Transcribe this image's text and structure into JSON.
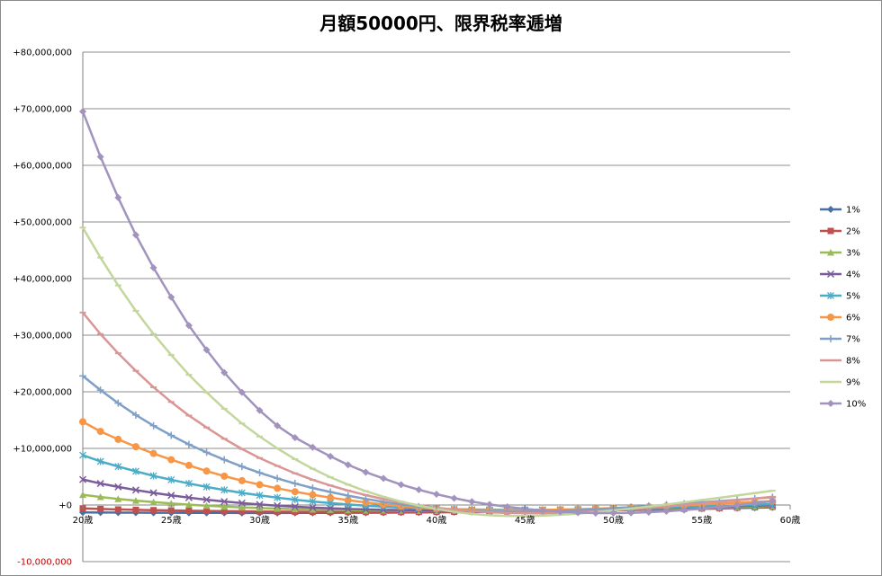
{
  "chart_data": {
    "type": "line",
    "title": "月額50000円、限界税率逓増",
    "xlabel": "",
    "ylabel": "",
    "xlim": [
      20,
      60
    ],
    "ylim": [
      -10000000,
      80000000
    ],
    "x_ticks": [
      {
        "value": 20,
        "label": "20歳"
      },
      {
        "value": 25,
        "label": "25歳"
      },
      {
        "value": 30,
        "label": "30歳"
      },
      {
        "value": 35,
        "label": "35歳"
      },
      {
        "value": 40,
        "label": "40歳"
      },
      {
        "value": 45,
        "label": "45歳"
      },
      {
        "value": 50,
        "label": "50歳"
      },
      {
        "value": 55,
        "label": "55歳"
      },
      {
        "value": 60,
        "label": "60歳"
      }
    ],
    "y_ticks": [
      {
        "value": 80000000,
        "label": "+80,000,000"
      },
      {
        "value": 70000000,
        "label": "+70,000,000"
      },
      {
        "value": 60000000,
        "label": "+60,000,000"
      },
      {
        "value": 50000000,
        "label": "+50,000,000"
      },
      {
        "value": 40000000,
        "label": "+40,000,000"
      },
      {
        "value": 30000000,
        "label": "+30,000,000"
      },
      {
        "value": 20000000,
        "label": "+20,000,000"
      },
      {
        "value": 10000000,
        "label": "+10,000,000"
      },
      {
        "value": 0,
        "label": "+0"
      },
      {
        "value": -10000000,
        "label": "-10,000,000"
      }
    ],
    "grid": true,
    "legend_position": "right",
    "x": [
      20,
      21,
      22,
      23,
      24,
      25,
      26,
      27,
      28,
      29,
      30,
      31,
      32,
      33,
      34,
      35,
      36,
      37,
      38,
      39,
      40,
      41,
      42,
      43,
      44,
      45,
      46,
      47,
      48,
      49,
      50,
      51,
      52,
      53,
      54,
      55,
      56,
      57,
      58,
      59
    ],
    "series": [
      {
        "name": "1%",
        "color": "#4a6fa5",
        "marker": "diamond",
        "values": [
          -1300000,
          -1320000,
          -1340000,
          -1350000,
          -1360000,
          -1370000,
          -1380000,
          -1390000,
          -1395000,
          -1400000,
          -1400000,
          -1400000,
          -1395000,
          -1390000,
          -1380000,
          -1370000,
          -1360000,
          -1345000,
          -1330000,
          -1310000,
          -1290000,
          -1265000,
          -1240000,
          -1210000,
          -1180000,
          -1145000,
          -1110000,
          -1070000,
          -1030000,
          -985000,
          -940000,
          -890000,
          -840000,
          -785000,
          -730000,
          -670000,
          -610000,
          -545000,
          -480000,
          -410000
        ]
      },
      {
        "name": "2%",
        "color": "#c0504d",
        "marker": "square",
        "values": [
          -600000,
          -700000,
          -780000,
          -850000,
          -910000,
          -960000,
          -1010000,
          -1050000,
          -1090000,
          -1120000,
          -1150000,
          -1175000,
          -1195000,
          -1210000,
          -1220000,
          -1230000,
          -1235000,
          -1235000,
          -1230000,
          -1222000,
          -1210000,
          -1195000,
          -1175000,
          -1152000,
          -1125000,
          -1095000,
          -1062000,
          -1025000,
          -985000,
          -942000,
          -895000,
          -845000,
          -792000,
          -735000,
          -675000,
          -612000,
          -545000,
          -476000,
          -403000,
          -327000
        ]
      },
      {
        "name": "3%",
        "color": "#9bbb59",
        "marker": "triangle",
        "values": [
          1800000,
          1420000,
          1080000,
          780000,
          510000,
          270000,
          60000,
          -120000,
          -280000,
          -420000,
          -540000,
          -640000,
          -730000,
          -800000,
          -860000,
          -910000,
          -950000,
          -980000,
          -1000000,
          -1012000,
          -1018000,
          -1018000,
          -1012000,
          -1000000,
          -983000,
          -960000,
          -932000,
          -900000,
          -862000,
          -820000,
          -773000,
          -722000,
          -667000,
          -608000,
          -545000,
          -478000,
          -408000,
          -334000,
          -257000,
          -176000
        ]
      },
      {
        "name": "4%",
        "color": "#7a5c9a",
        "marker": "x",
        "values": [
          4500000,
          3800000,
          3200000,
          2650000,
          2150000,
          1700000,
          1300000,
          940000,
          620000,
          340000,
          90000,
          -120000,
          -300000,
          -450000,
          -580000,
          -690000,
          -780000,
          -850000,
          -900000,
          -940000,
          -968000,
          -982000,
          -985000,
          -978000,
          -962000,
          -938000,
          -906000,
          -868000,
          -824000,
          -774000,
          -719000,
          -659000,
          -594000,
          -525000,
          -452000,
          -375000,
          -294000,
          -210000,
          -122000,
          -31000
        ]
      },
      {
        "name": "5%",
        "color": "#4aacc6",
        "marker": "star",
        "values": [
          8800000,
          7700000,
          6800000,
          5950000,
          5150000,
          4450000,
          3800000,
          3200000,
          2650000,
          2150000,
          1700000,
          1300000,
          940000,
          620000,
          340000,
          90000,
          -120000,
          -300000,
          -450000,
          -570000,
          -670000,
          -745000,
          -800000,
          -836000,
          -854000,
          -856000,
          -844000,
          -818000,
          -780000,
          -731000,
          -672000,
          -604000,
          -528000,
          -445000,
          -355000,
          -260000,
          -160000,
          -56000,
          52000,
          163000
        ]
      },
      {
        "name": "6%",
        "color": "#f79646",
        "marker": "circle",
        "values": [
          14700000,
          13000000,
          11600000,
          10300000,
          9100000,
          8000000,
          7000000,
          6000000,
          5100000,
          4300000,
          3600000,
          2950000,
          2350000,
          1800000,
          1300000,
          860000,
          460000,
          100000,
          -200000,
          -460000,
          -660000,
          -800000,
          -890000,
          -940000,
          -950000,
          -930000,
          -885000,
          -820000,
          -740000,
          -645000,
          -540000,
          -425000,
          -302000,
          -172000,
          -36000,
          105000,
          250000,
          398000,
          548000,
          700000
        ]
      },
      {
        "name": "7%",
        "color": "#7f9fc6",
        "marker": "plus",
        "values": [
          22800000,
          20300000,
          18000000,
          15900000,
          14000000,
          12300000,
          10700000,
          9300000,
          8000000,
          6800000,
          5700000,
          4700000,
          3800000,
          3000000,
          2300000,
          1650000,
          1080000,
          560000,
          110000,
          -280000,
          -600000,
          -850000,
          -1030000,
          -1150000,
          -1200000,
          -1190000,
          -1130000,
          -1030000,
          -900000,
          -745000,
          -570000,
          -380000,
          -180000,
          30000,
          245000,
          465000,
          688000,
          913000,
          1140000,
          1368000
        ]
      },
      {
        "name": "8%",
        "color": "#d99694",
        "marker": "dash",
        "values": [
          34000000,
          30200000,
          26800000,
          23700000,
          20800000,
          18200000,
          15800000,
          13700000,
          11700000,
          9900000,
          8300000,
          6900000,
          5600000,
          4450000,
          3450000,
          2550000,
          1750000,
          1050000,
          450000,
          -50000,
          -470000,
          -820000,
          -1090000,
          -1280000,
          -1400000,
          -1450000,
          -1440000,
          -1380000,
          -1270000,
          -1120000,
          -940000,
          -730000,
          -500000,
          -250000,
          15000,
          290000,
          573000,
          862000,
          1155000,
          1452000
        ]
      },
      {
        "name": "9%",
        "color": "#c3d69b",
        "marker": "dash",
        "values": [
          49000000,
          43700000,
          38800000,
          34300000,
          30200000,
          26500000,
          23000000,
          19900000,
          17000000,
          14400000,
          12100000,
          10000000,
          8100000,
          6400000,
          4900000,
          3600000,
          2450000,
          1450000,
          600000,
          -120000,
          -720000,
          -1200000,
          -1560000,
          -1800000,
          -1930000,
          -1950000,
          -1880000,
          -1730000,
          -1520000,
          -1260000,
          -960000,
          -630000,
          -280000,
          90000,
          475000,
          872000,
          1277000,
          1688000,
          2103000,
          2521000
        ]
      },
      {
        "name": "10%",
        "color": "#a193be",
        "marker": "diamond",
        "values": [
          69500000,
          61500000,
          54300000,
          47700000,
          41900000,
          36700000,
          31700000,
          27400000,
          23400000,
          19900000,
          16700000,
          14000000,
          11900000,
          10200000,
          8600000,
          7100000,
          5800000,
          4700000,
          3600000,
          2700000,
          1900000,
          1200000,
          600000,
          100000,
          -320000,
          -680000,
          -970000,
          -1190000,
          -1340000,
          -1420000,
          -1430000,
          -1380000,
          -1270000,
          -1110000,
          -900000,
          -650000,
          -360000,
          -40000,
          310000,
          680000
        ]
      }
    ]
  }
}
